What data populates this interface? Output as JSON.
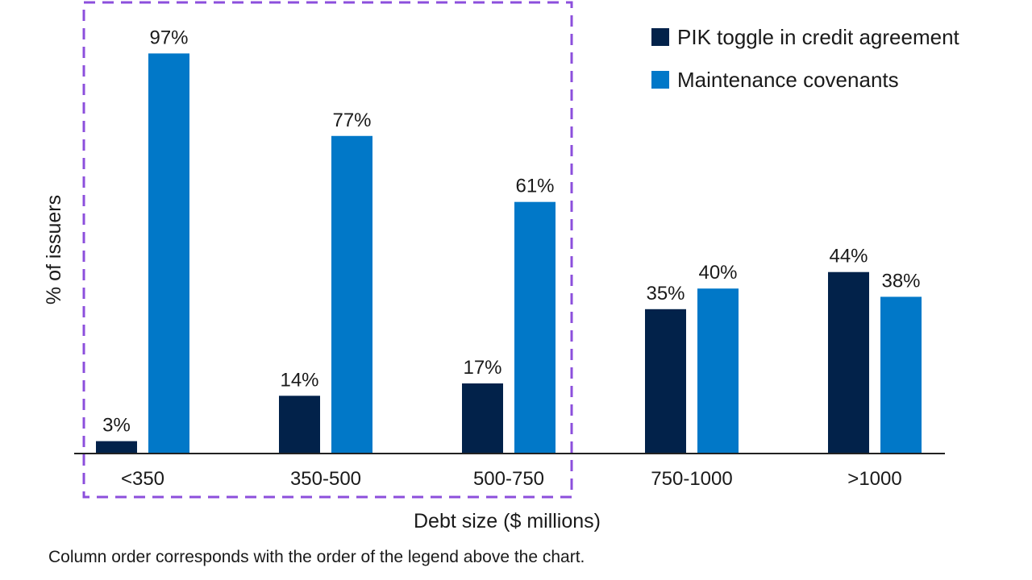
{
  "chart_data": {
    "type": "bar",
    "categories": [
      "<350",
      "350-500",
      "500-750",
      "750-1000",
      ">1000"
    ],
    "series": [
      {
        "name": "PIK toggle in credit agreement",
        "values": [
          3,
          14,
          17,
          35,
          44
        ],
        "labels": [
          "3%",
          "14%",
          "17%",
          "35%",
          "44%"
        ],
        "color": "#02224a"
      },
      {
        "name": "Maintenance covenants",
        "values": [
          97,
          77,
          61,
          40,
          38
        ],
        "labels": [
          "97%",
          "77%",
          "61%",
          "40%",
          "38%"
        ],
        "color": "#0178c8"
      }
    ],
    "xlabel": "Debt size ($ millions)",
    "ylabel": "% of issuers",
    "ylim": [
      0,
      100
    ],
    "grid": false,
    "legend_position": "top-right",
    "highlight": {
      "categories": [
        "<350",
        "350-500",
        "500-750"
      ],
      "style": "dashed",
      "color": "#8c4fdc"
    }
  },
  "footnote": "Column order corresponds with the order of the legend above the chart."
}
